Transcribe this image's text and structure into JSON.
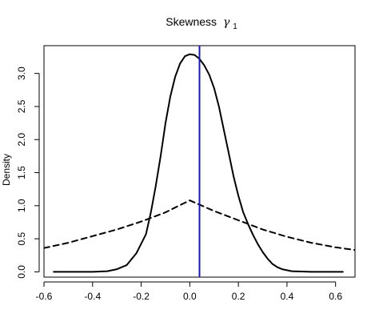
{
  "chart_data": {
    "type": "line",
    "title_main": "Skewness",
    "title_symbol": "γ",
    "title_subscript": "1",
    "xlabel": "",
    "ylabel": "Density",
    "xlim": [
      -0.6,
      0.68
    ],
    "ylim": [
      -0.08,
      3.42
    ],
    "x_ticks": [
      -0.6,
      -0.4,
      -0.2,
      0.0,
      0.2,
      0.4,
      0.6
    ],
    "x_tick_labels": [
      "-0.6",
      "-0.4",
      "-0.2",
      "0.0",
      "0.2",
      "0.4",
      "0.6"
    ],
    "y_ticks": [
      0.0,
      0.5,
      1.0,
      1.5,
      2.0,
      2.5,
      3.0
    ],
    "y_tick_labels": [
      "0.0",
      "0.5",
      "1.0",
      "1.5",
      "2.0",
      "2.5",
      "3.0"
    ],
    "vline": {
      "x": 0.04,
      "color": "#1a1aa6"
    },
    "series": [
      {
        "style": "solid",
        "color": "#000000",
        "points": [
          [
            -0.56,
            0.0
          ],
          [
            -0.4,
            0.0
          ],
          [
            -0.34,
            0.01
          ],
          [
            -0.3,
            0.04
          ],
          [
            -0.26,
            0.1
          ],
          [
            -0.22,
            0.28
          ],
          [
            -0.18,
            0.57
          ],
          [
            -0.16,
            0.9
          ],
          [
            -0.14,
            1.3
          ],
          [
            -0.12,
            1.75
          ],
          [
            -0.1,
            2.25
          ],
          [
            -0.08,
            2.65
          ],
          [
            -0.06,
            2.95
          ],
          [
            -0.04,
            3.15
          ],
          [
            -0.02,
            3.26
          ],
          [
            0.0,
            3.29
          ],
          [
            0.02,
            3.28
          ],
          [
            0.04,
            3.22
          ],
          [
            0.06,
            3.12
          ],
          [
            0.08,
            2.98
          ],
          [
            0.1,
            2.78
          ],
          [
            0.12,
            2.5
          ],
          [
            0.14,
            2.15
          ],
          [
            0.16,
            1.8
          ],
          [
            0.18,
            1.45
          ],
          [
            0.2,
            1.15
          ],
          [
            0.22,
            0.9
          ],
          [
            0.24,
            0.72
          ],
          [
            0.26,
            0.56
          ],
          [
            0.28,
            0.42
          ],
          [
            0.3,
            0.3
          ],
          [
            0.32,
            0.2
          ],
          [
            0.34,
            0.12
          ],
          [
            0.36,
            0.07
          ],
          [
            0.38,
            0.04
          ],
          [
            0.42,
            0.01
          ],
          [
            0.5,
            0.0
          ],
          [
            0.63,
            0.0
          ]
        ]
      },
      {
        "style": "dashed",
        "color": "#000000",
        "points": [
          [
            -0.6,
            0.36
          ],
          [
            -0.5,
            0.44
          ],
          [
            -0.4,
            0.54
          ],
          [
            -0.3,
            0.64
          ],
          [
            -0.2,
            0.76
          ],
          [
            -0.1,
            0.9
          ],
          [
            -0.05,
            0.99
          ],
          [
            0.0,
            1.08
          ],
          [
            0.05,
            1.0
          ],
          [
            0.1,
            0.92
          ],
          [
            0.2,
            0.78
          ],
          [
            0.3,
            0.64
          ],
          [
            0.4,
            0.53
          ],
          [
            0.5,
            0.44
          ],
          [
            0.6,
            0.37
          ],
          [
            0.68,
            0.33
          ]
        ]
      }
    ],
    "grid": false
  }
}
